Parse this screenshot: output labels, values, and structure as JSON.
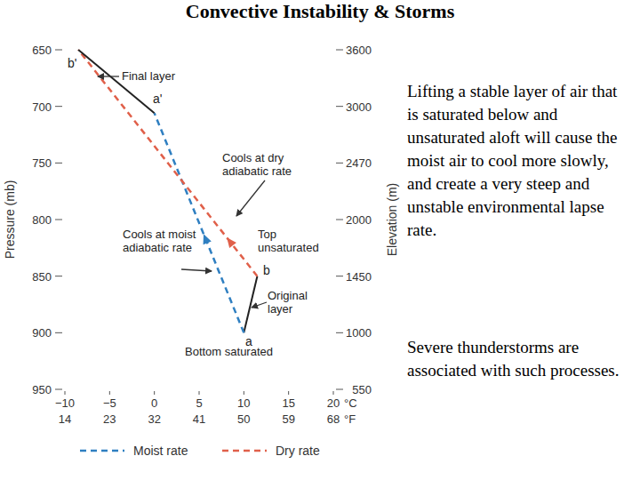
{
  "title": "Convective Instability & Storms",
  "body": [
    "Lifting a stable layer of air that is saturated below and unsaturated aloft will cause the moist air to cool more slowly, and create a very steep and unstable environmental lapse rate.",
    "Severe thunderstorms are associated with such processes."
  ],
  "chart_data": {
    "type": "line",
    "xlabel": "°C",
    "x2label": "°F",
    "ylabel": "Pressure (mb)",
    "y2label": "Elevation (m)",
    "xlim": [
      -10,
      20
    ],
    "xticks": [
      -10,
      -5,
      0,
      5,
      10,
      15,
      20
    ],
    "x2lim": [
      14,
      68
    ],
    "x2ticks": [
      14,
      23,
      32,
      41,
      50,
      59,
      68
    ],
    "ylim": [
      950,
      650
    ],
    "yticks": [
      650,
      700,
      750,
      800,
      850,
      900,
      950
    ],
    "y2lim": [
      3600,
      550
    ],
    "y2ticks": [
      3600,
      3000,
      2470,
      2000,
      1450,
      1000,
      550
    ],
    "series": [
      {
        "x": [
          10,
          11.5
        ],
        "values": [
          900,
          850
        ],
        "color": "#222222",
        "line_style": "solid"
      },
      {
        "name": "Moist rate",
        "x": [
          10,
          0
        ],
        "values": [
          900,
          706
        ],
        "color": "#2f7fc1",
        "line_style": "dashed"
      },
      {
        "name": "Dry rate",
        "x": [
          11.5,
          -8.5
        ],
        "values": [
          850,
          650
        ],
        "color": "#e0604a",
        "line_style": "dashed"
      },
      {
        "x": [
          0,
          -8.5
        ],
        "values": [
          706,
          650
        ],
        "color": "#222222",
        "line_style": "solid"
      }
    ],
    "annotations": [
      "Final layer",
      "Cools at dry adiabatic rate",
      "Top unsaturated",
      "Cools at moist adiabatic rate",
      "Original layer",
      "Bottom saturated",
      "a",
      "b",
      "a'",
      "b'"
    ],
    "legend": "bottom"
  }
}
